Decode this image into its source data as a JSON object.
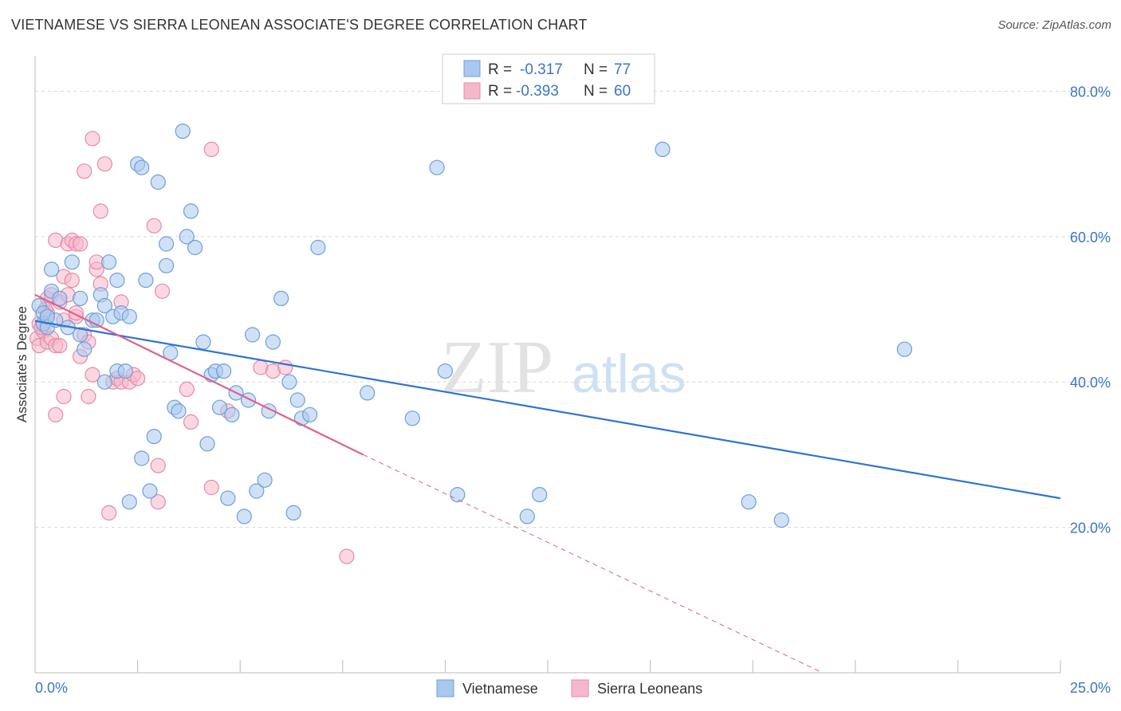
{
  "title": "VIETNAMESE VS SIERRA LEONEAN ASSOCIATE'S DEGREE CORRELATION CHART",
  "source": "Source: ZipAtlas.com",
  "watermark": {
    "zip": "ZIP",
    "atlas": "atlas"
  },
  "colors": {
    "blue_fill": "#a9c8ee",
    "blue_stroke": "#6b9fdc",
    "blue_line": "#2f74d0",
    "pink_fill": "#f5b8cb",
    "pink_stroke": "#e889a7",
    "pink_line": "#e0608c",
    "tick_text": "#3a76c4",
    "grid": "#d8d8d8"
  },
  "stats": [
    {
      "r_label": "R =",
      "r_value": "-0.317",
      "n_label": "N =",
      "n_value": "77"
    },
    {
      "r_label": "R =",
      "r_value": "-0.393",
      "n_label": "N =",
      "n_value": "60"
    }
  ],
  "chart_data": {
    "type": "scatter",
    "title": "VIETNAMESE VS SIERRA LEONEAN ASSOCIATE'S DEGREE CORRELATION CHART",
    "xlabel": "",
    "ylabel": "Associate's Degree",
    "xlim": [
      0,
      25
    ],
    "ylim": [
      0,
      84
    ],
    "x_tick_labels": [
      "0.0%",
      "25.0%"
    ],
    "y_ticks": [
      20,
      40,
      60,
      80
    ],
    "y_tick_labels": [
      "20.0%",
      "40.0%",
      "60.0%",
      "80.0%"
    ],
    "grid": true,
    "legend_position": "bottom-center",
    "series": [
      {
        "name": "Vietnamese",
        "color": "#6b9fdc",
        "trend": {
          "x": [
            0,
            25
          ],
          "y": [
            48.4,
            24.0
          ]
        },
        "points": [
          [
            0.1,
            50.5
          ],
          [
            0.2,
            48.0
          ],
          [
            0.2,
            49.5
          ],
          [
            0.3,
            47.5
          ],
          [
            0.4,
            52.5
          ],
          [
            0.4,
            55.5
          ],
          [
            0.5,
            48.5
          ],
          [
            0.6,
            51.5
          ],
          [
            0.9,
            56.5
          ],
          [
            1.1,
            46.5
          ],
          [
            1.2,
            44.5
          ],
          [
            1.1,
            51.5
          ],
          [
            1.4,
            48.5
          ],
          [
            1.5,
            48.5
          ],
          [
            1.6,
            52.0
          ],
          [
            1.7,
            50.5
          ],
          [
            1.7,
            40.0
          ],
          [
            1.8,
            56.5
          ],
          [
            1.9,
            49.0
          ],
          [
            2.0,
            41.5
          ],
          [
            2.0,
            54.0
          ],
          [
            2.1,
            49.5
          ],
          [
            2.2,
            41.5
          ],
          [
            2.3,
            23.5
          ],
          [
            2.3,
            49.0
          ],
          [
            2.5,
            70.0
          ],
          [
            2.6,
            69.5
          ],
          [
            2.6,
            29.5
          ],
          [
            2.7,
            54.0
          ],
          [
            2.8,
            25.0
          ],
          [
            2.9,
            32.5
          ],
          [
            3.0,
            67.5
          ],
          [
            3.2,
            59.0
          ],
          [
            3.2,
            56.0
          ],
          [
            3.3,
            44.0
          ],
          [
            3.4,
            36.5
          ],
          [
            3.5,
            36.0
          ],
          [
            3.6,
            74.5
          ],
          [
            3.7,
            60.0
          ],
          [
            3.8,
            63.5
          ],
          [
            3.9,
            58.5
          ],
          [
            4.1,
            45.5
          ],
          [
            4.2,
            31.5
          ],
          [
            4.3,
            41.0
          ],
          [
            4.4,
            41.5
          ],
          [
            4.5,
            36.5
          ],
          [
            4.6,
            41.5
          ],
          [
            4.7,
            24.0
          ],
          [
            4.8,
            35.5
          ],
          [
            4.9,
            38.5
          ],
          [
            5.1,
            21.5
          ],
          [
            5.2,
            37.5
          ],
          [
            5.3,
            46.5
          ],
          [
            5.4,
            25.0
          ],
          [
            5.6,
            26.5
          ],
          [
            5.7,
            36.0
          ],
          [
            5.8,
            45.5
          ],
          [
            6.0,
            51.5
          ],
          [
            6.2,
            40.0
          ],
          [
            6.3,
            22.0
          ],
          [
            6.4,
            37.5
          ],
          [
            6.5,
            35.0
          ],
          [
            6.7,
            35.5
          ],
          [
            6.9,
            58.5
          ],
          [
            8.1,
            38.5
          ],
          [
            9.2,
            35.0
          ],
          [
            9.8,
            69.5
          ],
          [
            10.0,
            41.5
          ],
          [
            10.3,
            24.5
          ],
          [
            12.0,
            21.5
          ],
          [
            12.3,
            24.5
          ],
          [
            15.3,
            72.0
          ],
          [
            17.4,
            23.5
          ],
          [
            18.2,
            21.0
          ],
          [
            21.2,
            44.5
          ],
          [
            0.3,
            49.0
          ],
          [
            0.8,
            47.5
          ]
        ]
      },
      {
        "name": "Sierra Leoneans",
        "color": "#e889a7",
        "trend": {
          "x": [
            0,
            8
          ],
          "y": [
            52.0,
            30.0
          ]
        },
        "trend_extension": {
          "x": [
            8,
            19.2
          ],
          "y": [
            30.0,
            0.0
          ]
        },
        "points": [
          [
            0.05,
            46.0
          ],
          [
            0.1,
            45.0
          ],
          [
            0.1,
            48.0
          ],
          [
            0.2,
            47.0
          ],
          [
            0.3,
            49.5
          ],
          [
            0.3,
            51.5
          ],
          [
            0.3,
            45.5
          ],
          [
            0.4,
            52.0
          ],
          [
            0.4,
            46.0
          ],
          [
            0.5,
            45.0
          ],
          [
            0.5,
            35.5
          ],
          [
            0.5,
            59.5
          ],
          [
            0.6,
            51.0
          ],
          [
            0.7,
            48.5
          ],
          [
            0.7,
            38.0
          ],
          [
            0.7,
            54.5
          ],
          [
            0.8,
            59.0
          ],
          [
            0.8,
            52.0
          ],
          [
            0.9,
            59.5
          ],
          [
            0.9,
            54.0
          ],
          [
            1.0,
            49.0
          ],
          [
            1.0,
            59.0
          ],
          [
            1.1,
            43.5
          ],
          [
            1.1,
            59.0
          ],
          [
            1.2,
            46.5
          ],
          [
            1.2,
            69.0
          ],
          [
            1.3,
            38.0
          ],
          [
            1.3,
            45.5
          ],
          [
            1.4,
            41.0
          ],
          [
            1.4,
            73.5
          ],
          [
            1.5,
            55.5
          ],
          [
            1.5,
            56.5
          ],
          [
            1.6,
            63.5
          ],
          [
            1.6,
            53.5
          ],
          [
            1.7,
            70.0
          ],
          [
            1.8,
            22.0
          ],
          [
            1.9,
            40.0
          ],
          [
            2.0,
            40.5
          ],
          [
            2.1,
            40.0
          ],
          [
            2.1,
            51.0
          ],
          [
            2.3,
            40.0
          ],
          [
            2.4,
            41.0
          ],
          [
            2.5,
            40.5
          ],
          [
            2.9,
            61.5
          ],
          [
            3.0,
            23.5
          ],
          [
            3.0,
            28.5
          ],
          [
            3.1,
            52.5
          ],
          [
            3.7,
            39.0
          ],
          [
            3.8,
            34.5
          ],
          [
            4.3,
            72.0
          ],
          [
            4.3,
            25.5
          ],
          [
            4.7,
            36.0
          ],
          [
            5.5,
            42.0
          ],
          [
            5.8,
            41.5
          ],
          [
            6.1,
            42.0
          ],
          [
            7.6,
            16.0
          ],
          [
            0.15,
            47.5
          ],
          [
            0.25,
            50.0
          ],
          [
            0.6,
            45.0
          ],
          [
            1.0,
            49.5
          ]
        ]
      }
    ]
  }
}
